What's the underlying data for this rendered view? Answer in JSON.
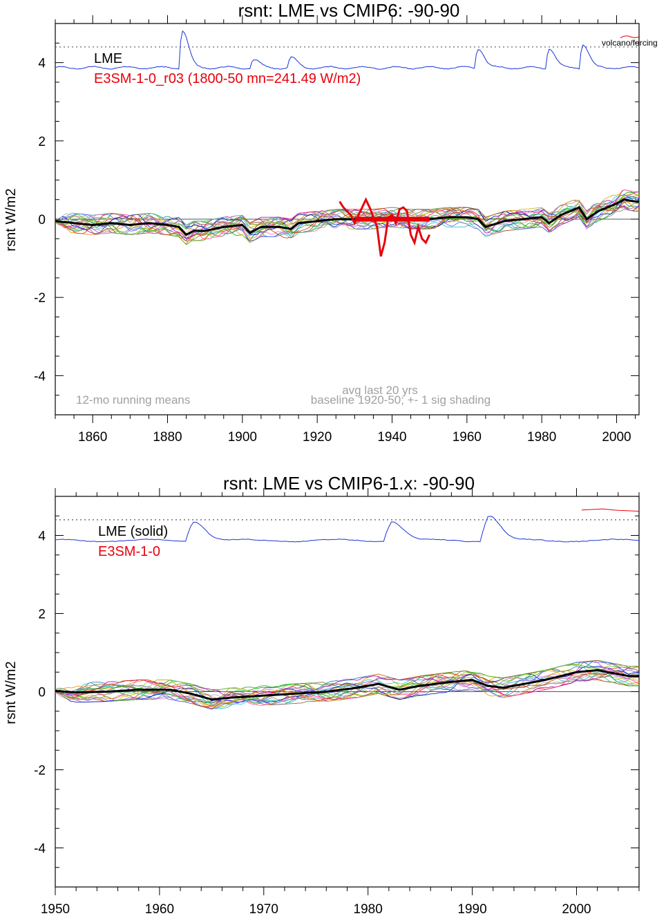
{
  "chart_data": [
    {
      "type": "line",
      "title": "rsnt: LME vs CMIP6: -90-90",
      "ylabel": "rsnt W/m2",
      "xlim": [
        1850,
        2006
      ],
      "ylim": [
        -5,
        5
      ],
      "x_ticks": [
        1860,
        1880,
        1900,
        1920,
        1940,
        1960,
        1980,
        2000
      ],
      "y_ticks": [
        -4,
        -2,
        0,
        2,
        4
      ],
      "legend_entries": [
        {
          "label": "LME",
          "color": "#000000"
        },
        {
          "label": "E3SM-1-0_r03 (1800-50 mn=241.49 W/m2)",
          "color": "#e8000b"
        }
      ],
      "annotations": {
        "running_means": "12-mo running means",
        "avg_last": "avg last 20 yrs",
        "baseline": "baseline 1920-50; +- 1 sig shading",
        "volcano": "volcano/forcing"
      },
      "reference_lines": {
        "zero": 0,
        "dotted": 4.4
      },
      "volcano_peaks": [
        {
          "year": 1884,
          "peak": 4.85
        },
        {
          "year": 1903,
          "peak": 4.1
        },
        {
          "year": 1913,
          "peak": 4.15
        },
        {
          "year": 1963,
          "peak": 4.4
        },
        {
          "year": 1982,
          "peak": 4.4
        },
        {
          "year": 1991,
          "peak": 4.5
        }
      ],
      "lme_mean": [
        [
          1850,
          -0.05
        ],
        [
          1855,
          -0.1
        ],
        [
          1860,
          -0.15
        ],
        [
          1865,
          -0.1
        ],
        [
          1870,
          -0.15
        ],
        [
          1875,
          -0.1
        ],
        [
          1880,
          -0.15
        ],
        [
          1883,
          -0.2
        ],
        [
          1885,
          -0.4
        ],
        [
          1887,
          -0.3
        ],
        [
          1890,
          -0.3
        ],
        [
          1895,
          -0.2
        ],
        [
          1900,
          -0.15
        ],
        [
          1902,
          -0.35
        ],
        [
          1905,
          -0.2
        ],
        [
          1910,
          -0.2
        ],
        [
          1913,
          -0.25
        ],
        [
          1915,
          -0.1
        ],
        [
          1920,
          -0.05
        ],
        [
          1925,
          0.0
        ],
        [
          1930,
          0.0
        ],
        [
          1935,
          0.0
        ],
        [
          1940,
          0.05
        ],
        [
          1945,
          0.0
        ],
        [
          1950,
          0.0
        ],
        [
          1955,
          0.05
        ],
        [
          1960,
          0.05
        ],
        [
          1963,
          0.0
        ],
        [
          1965,
          -0.2
        ],
        [
          1970,
          -0.05
        ],
        [
          1975,
          0.0
        ],
        [
          1980,
          0.05
        ],
        [
          1982,
          -0.1
        ],
        [
          1985,
          0.1
        ],
        [
          1990,
          0.3
        ],
        [
          1992,
          0.0
        ],
        [
          1995,
          0.2
        ],
        [
          2000,
          0.4
        ],
        [
          2002,
          0.5
        ],
        [
          2005,
          0.45
        ]
      ],
      "e3sm_series": [
        [
          1926,
          0.45
        ],
        [
          1927,
          0.3
        ],
        [
          1928,
          0.2
        ],
        [
          1929,
          0.1
        ],
        [
          1930,
          -0.1
        ],
        [
          1931,
          0.1
        ],
        [
          1932,
          0.3
        ],
        [
          1933,
          0.5
        ],
        [
          1934,
          0.3
        ],
        [
          1935,
          0.05
        ],
        [
          1936,
          -0.2
        ],
        [
          1937,
          -0.95
        ],
        [
          1938,
          -0.6
        ],
        [
          1939,
          0.05
        ],
        [
          1940,
          0.1
        ],
        [
          1941,
          -0.1
        ],
        [
          1942,
          0.25
        ],
        [
          1943,
          0.3
        ],
        [
          1944,
          0.2
        ],
        [
          1945,
          -0.4
        ],
        [
          1946,
          -0.6
        ],
        [
          1947,
          -0.2
        ],
        [
          1948,
          -0.5
        ],
        [
          1949,
          -0.6
        ],
        [
          1950,
          -0.4
        ]
      ],
      "e3sm_baseline": {
        "start": 1930,
        "end": 1950,
        "value": 0.0
      }
    },
    {
      "type": "line",
      "title": "rsnt: LME vs CMIP6-1.x: -90-90",
      "ylabel": "rsnt W/m2",
      "xlim": [
        1950,
        2006
      ],
      "ylim": [
        -5,
        5
      ],
      "x_ticks": [
        1950,
        1960,
        1970,
        1980,
        1990,
        2000
      ],
      "y_ticks": [
        -4,
        -2,
        0,
        2,
        4
      ],
      "legend_entries": [
        {
          "label": "LME (solid)",
          "color": "#000000"
        },
        {
          "label": "E3SM-1-0",
          "color": "#e8000b"
        }
      ],
      "reference_lines": {
        "zero": 0,
        "dotted": 4.4
      },
      "volcano_peaks": [
        {
          "year": 1963.3,
          "peak": 4.4
        },
        {
          "year": 1982.3,
          "peak": 4.4
        },
        {
          "year": 1991.6,
          "peak": 4.55
        }
      ],
      "lme_mean": [
        [
          1950,
          0.02
        ],
        [
          1952,
          -0.02
        ],
        [
          1955,
          0.0
        ],
        [
          1958,
          0.05
        ],
        [
          1961,
          0.05
        ],
        [
          1963,
          -0.05
        ],
        [
          1965,
          -0.2
        ],
        [
          1967,
          -0.15
        ],
        [
          1970,
          -0.1
        ],
        [
          1973,
          -0.05
        ],
        [
          1976,
          0.0
        ],
        [
          1979,
          0.1
        ],
        [
          1981,
          0.2
        ],
        [
          1983,
          0.05
        ],
        [
          1985,
          0.15
        ],
        [
          1988,
          0.25
        ],
        [
          1990,
          0.3
        ],
        [
          1991.5,
          0.15
        ],
        [
          1993,
          0.1
        ],
        [
          1995,
          0.2
        ],
        [
          1997,
          0.3
        ],
        [
          2000,
          0.5
        ],
        [
          2002,
          0.55
        ],
        [
          2005,
          0.4
        ]
      ],
      "volcano_forcing_red": [
        [
          2000.5,
          4.65
        ],
        [
          2002.5,
          4.68
        ],
        [
          2004,
          4.64
        ],
        [
          2006,
          4.62
        ]
      ]
    }
  ]
}
